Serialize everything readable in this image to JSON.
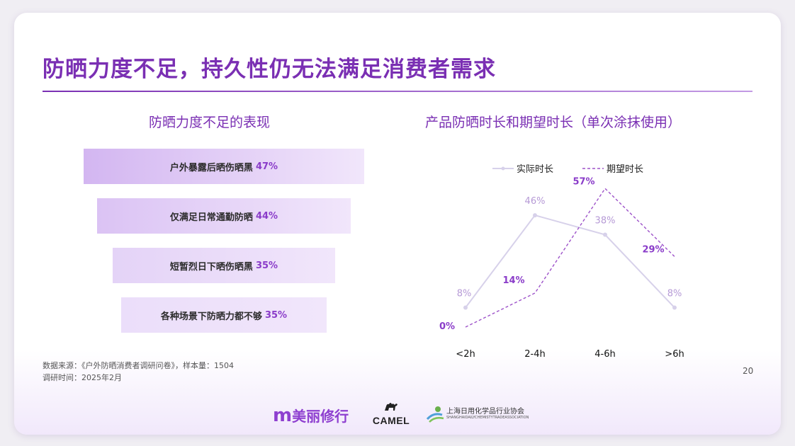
{
  "title": "防晒力度不足，持久性仍无法满足消费者需求",
  "left_subtitle": "防晒力度不足的表现",
  "right_subtitle": "产品防晒时长和期望时长（单次涂抹使用）",
  "chart_data": [
    {
      "type": "bar",
      "layout": "funnel",
      "title": "防晒力度不足的表现",
      "categories": [
        "户外暴露后晒伤晒黑",
        "仅满足日常通勤防晒",
        "短暂烈日下晒伤晒黑",
        "各种场景下防晒力都不够"
      ],
      "values": [
        47,
        44,
        35,
        35
      ],
      "value_labels": [
        "47%",
        "44%",
        "35%",
        "35%"
      ],
      "colors": [
        "#d3b6f1",
        "#dbc3f4",
        "#e4d3f7",
        "#ebdefa"
      ]
    },
    {
      "type": "line",
      "title": "产品防晒时长和期望时长（单次涂抹使用）",
      "categories": [
        "<2h",
        "2-4h",
        "4-6h",
        ">6h"
      ],
      "series": [
        {
          "name": "实际时长",
          "values": [
            8,
            46,
            38,
            8
          ],
          "labels": [
            "8%",
            "46%",
            "38%",
            "8%"
          ],
          "color": "#d7d1ea",
          "label_color": "#b69ad6",
          "style": "solid"
        },
        {
          "name": "期望时长",
          "values": [
            0,
            14,
            57,
            29
          ],
          "labels": [
            "0%",
            "14%",
            "57%",
            "29%"
          ],
          "color": "#9d52c9",
          "label_color": "#8a3cc9",
          "style": "dashed"
        }
      ],
      "ylim": [
        0,
        60
      ],
      "grid": false,
      "legend": "top"
    }
  ],
  "source_line": "数据来源：《户外防晒消费者调研问卷》，样本量：1504",
  "date_line": "调研时间：2025年2月",
  "page_number": "20",
  "logos": {
    "logo1_mark": "m",
    "logo1_text": "美丽修行",
    "logo2_text": "CAMEL",
    "logo3_cn": "上海日用化学品行业协会",
    "logo3_en": "SHANGHAIDAILYCHEMISTYTRADEASSOCIATION"
  }
}
